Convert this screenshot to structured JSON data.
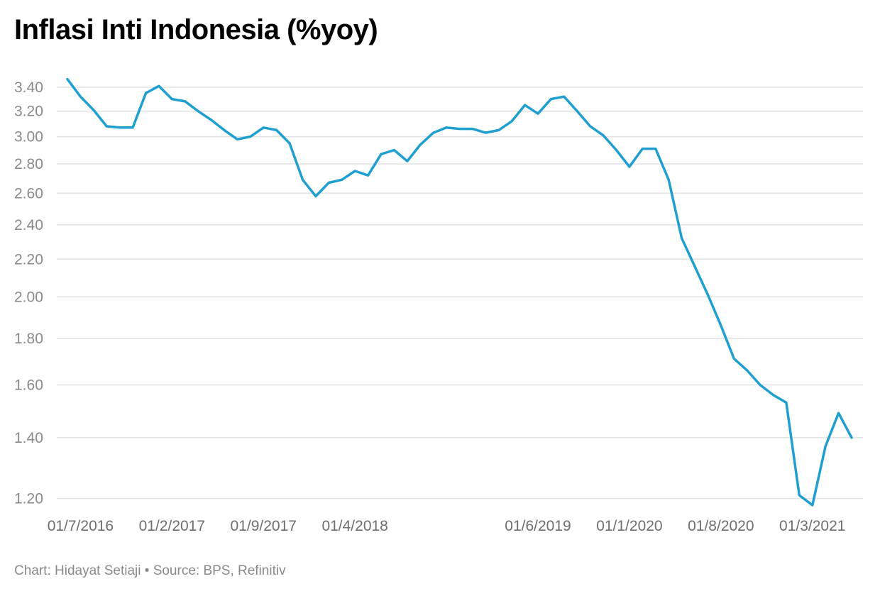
{
  "title": "Inflasi Inti Indonesia (%yoy)",
  "footer": {
    "credit": "Chart: Hidayat Setiaji",
    "separator": "•",
    "source": "Source: BPS, Refinitiv"
  },
  "colors": {
    "line": "#1f9fd0",
    "grid": "#e2e2e2",
    "tick_text": "#8a8a8a"
  },
  "chart_data": {
    "type": "line",
    "title": "Inflasi Inti Indonesia (%yoy)",
    "xlabel": "",
    "ylabel": "",
    "y_scale": "log",
    "ylim": [
      1.18,
      3.48
    ],
    "grid": true,
    "yticks": [
      "1.20",
      "1.40",
      "1.60",
      "1.80",
      "2.00",
      "2.20",
      "2.40",
      "2.60",
      "2.80",
      "3.00",
      "3.20",
      "3.40"
    ],
    "xticks": [
      "01/7/2016",
      "01/2/2017",
      "01/9/2017",
      "01/4/2018",
      "01/6/2019",
      "01/1/2020",
      "01/8/2020",
      "01/3/2021"
    ],
    "x": [
      "2016-06",
      "2016-07",
      "2016-08",
      "2016-09",
      "2016-10",
      "2016-11",
      "2016-12",
      "2017-01",
      "2017-02",
      "2017-03",
      "2017-04",
      "2017-05",
      "2017-06",
      "2017-07",
      "2017-08",
      "2017-09",
      "2017-10",
      "2017-11",
      "2017-12",
      "2018-01",
      "2018-02",
      "2018-03",
      "2018-04",
      "2018-05",
      "2018-06",
      "2018-07",
      "2018-08",
      "2018-09",
      "2018-10",
      "2018-11",
      "2018-12",
      "2019-01",
      "2019-02",
      "2019-03",
      "2019-04",
      "2019-05",
      "2019-06",
      "2019-07",
      "2019-08",
      "2019-09",
      "2019-10",
      "2019-11",
      "2019-12",
      "2020-01",
      "2020-02",
      "2020-03",
      "2020-04",
      "2020-05",
      "2020-06",
      "2020-07",
      "2020-08",
      "2020-09",
      "2020-10",
      "2020-11",
      "2020-12",
      "2021-01",
      "2021-02",
      "2021-03",
      "2021-04",
      "2021-05",
      "2021-06"
    ],
    "series": [
      {
        "name": "",
        "values": [
          3.47,
          3.32,
          3.21,
          3.08,
          3.07,
          3.07,
          3.35,
          3.41,
          3.3,
          3.28,
          3.2,
          3.13,
          3.05,
          2.98,
          3.0,
          3.07,
          3.05,
          2.95,
          2.69,
          2.58,
          2.67,
          2.69,
          2.75,
          2.72,
          2.87,
          2.9,
          2.82,
          2.94,
          3.03,
          3.07,
          3.06,
          3.06,
          3.03,
          3.05,
          3.12,
          3.25,
          3.18,
          3.3,
          3.32,
          3.2,
          3.08,
          3.01,
          2.9,
          2.78,
          2.91,
          2.91,
          2.69,
          2.32,
          2.16,
          2.01,
          1.86,
          1.71,
          1.66,
          1.6,
          1.56,
          1.53,
          1.21,
          1.18,
          1.37,
          1.49,
          1.4
        ]
      }
    ]
  }
}
